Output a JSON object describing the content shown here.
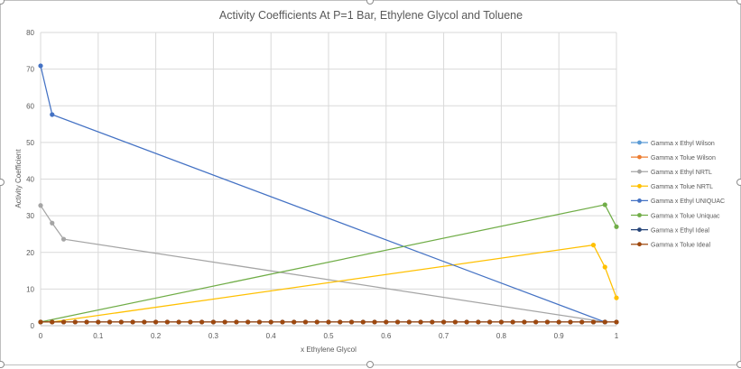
{
  "chart_data": {
    "type": "line",
    "title": "Activity Coefficients At P=1 Bar, Ethylene Glycol and Toluene",
    "xlabel": "x Ethylene Glycol",
    "ylabel": "Activity Coefficient",
    "xlim": [
      0,
      1
    ],
    "ylim": [
      0,
      80
    ],
    "xticks": [
      "0",
      "0.1",
      "0.2",
      "0.3",
      "0.4",
      "0.5",
      "0.6",
      "0.7",
      "0.8",
      "0.9",
      "1"
    ],
    "yticks": [
      "0",
      "10",
      "20",
      "30",
      "40",
      "50",
      "60",
      "70",
      "80"
    ],
    "grid": true,
    "legend_position": "right",
    "series": [
      {
        "name": "Gamma x Ethyl Wilson",
        "color": "#5B9BD5",
        "x": [
          0.98
        ],
        "y": [
          1.0
        ]
      },
      {
        "name": "Gamma x Tolue Wilson",
        "color": "#ED7D31",
        "x": [
          0.02
        ],
        "y": [
          1.0
        ]
      },
      {
        "name": "Gamma x Ethyl NRTL",
        "color": "#A5A5A5",
        "x": [
          0,
          0.02,
          0.04,
          0.98
        ],
        "y": [
          32.8,
          28.0,
          23.6,
          1.0
        ]
      },
      {
        "name": "Gamma x Tolue NRTL",
        "color": "#FFC000",
        "x": [
          0,
          0.02,
          0.96,
          0.98,
          1.0
        ],
        "y": [
          1.0,
          1.0,
          22.0,
          16.0,
          7.6
        ]
      },
      {
        "name": "Gamma x Ethyl UNIQUAC",
        "color": "#4472C4",
        "x": [
          0,
          0.02,
          0.98
        ],
        "y": [
          70.9,
          57.6,
          1.0
        ]
      },
      {
        "name": "Gamma x Tolue Uniquac",
        "color": "#70AD47",
        "x": [
          0,
          0.98,
          1.0
        ],
        "y": [
          1.0,
          33.0,
          27.0
        ]
      },
      {
        "name": "Gamma x Ethyl Ideal",
        "color": "#264478",
        "x": [
          0.0,
          0.02,
          0.04,
          0.06,
          0.08,
          0.1,
          0.12,
          0.14,
          0.16,
          0.18,
          0.2,
          0.22,
          0.24,
          0.26,
          0.28,
          0.3,
          0.32,
          0.34,
          0.36,
          0.38,
          0.4,
          0.42,
          0.44,
          0.46,
          0.48,
          0.5,
          0.52,
          0.54,
          0.56,
          0.58,
          0.6,
          0.62,
          0.64,
          0.66,
          0.68,
          0.7,
          0.72,
          0.74,
          0.76,
          0.78,
          0.8,
          0.82,
          0.84,
          0.86,
          0.88,
          0.9,
          0.92,
          0.94,
          0.96,
          0.98,
          1.0
        ],
        "y": [
          1,
          1,
          1,
          1,
          1,
          1,
          1,
          1,
          1,
          1,
          1,
          1,
          1,
          1,
          1,
          1,
          1,
          1,
          1,
          1,
          1,
          1,
          1,
          1,
          1,
          1,
          1,
          1,
          1,
          1,
          1,
          1,
          1,
          1,
          1,
          1,
          1,
          1,
          1,
          1,
          1,
          1,
          1,
          1,
          1,
          1,
          1,
          1,
          1,
          1,
          1
        ]
      },
      {
        "name": "Gamma x Tolue Ideal",
        "color": "#9E480E",
        "x": [
          0.0,
          0.02,
          0.04,
          0.06,
          0.08,
          0.1,
          0.12,
          0.14,
          0.16,
          0.18,
          0.2,
          0.22,
          0.24,
          0.26,
          0.28,
          0.3,
          0.32,
          0.34,
          0.36,
          0.38,
          0.4,
          0.42,
          0.44,
          0.46,
          0.48,
          0.5,
          0.52,
          0.54,
          0.56,
          0.58,
          0.6,
          0.62,
          0.64,
          0.66,
          0.68,
          0.7,
          0.72,
          0.74,
          0.76,
          0.78,
          0.8,
          0.82,
          0.84,
          0.86,
          0.88,
          0.9,
          0.92,
          0.94,
          0.96,
          0.98,
          1.0
        ],
        "y": [
          1,
          1,
          1,
          1,
          1,
          1,
          1,
          1,
          1,
          1,
          1,
          1,
          1,
          1,
          1,
          1,
          1,
          1,
          1,
          1,
          1,
          1,
          1,
          1,
          1,
          1,
          1,
          1,
          1,
          1,
          1,
          1,
          1,
          1,
          1,
          1,
          1,
          1,
          1,
          1,
          1,
          1,
          1,
          1,
          1,
          1,
          1,
          1,
          1,
          1,
          1
        ]
      }
    ]
  }
}
